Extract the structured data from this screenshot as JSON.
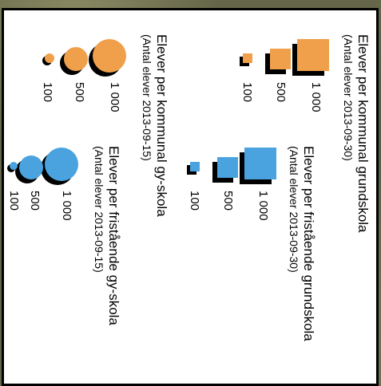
{
  "legend_groups": [
    {
      "title": "Elever per kommunal grundskola",
      "subtitle": "(Antal elever 2013-09-30)",
      "shape": "square",
      "color": "#f0a04b",
      "labels": [
        "1 000",
        "500",
        "100"
      ]
    },
    {
      "title": "Elever per fristående grundskola",
      "subtitle": "(Antal elever 2013-09-30)",
      "shape": "square",
      "color": "#4aa3df",
      "labels": [
        "1 000",
        "500",
        "100"
      ]
    },
    {
      "title": "Elever per kommunal gy-skola",
      "subtitle": "(Antal elever 2013-09-15)",
      "shape": "circle",
      "color": "#f0a04b",
      "labels": [
        "1 000",
        "500",
        "100"
      ]
    },
    {
      "title": "Elever per fristående gy-skola",
      "subtitle": "(Antal elever 2013-09-15)",
      "shape": "circle",
      "color": "#4aa3df",
      "labels": [
        "1 000",
        "500",
        "100"
      ]
    }
  ]
}
